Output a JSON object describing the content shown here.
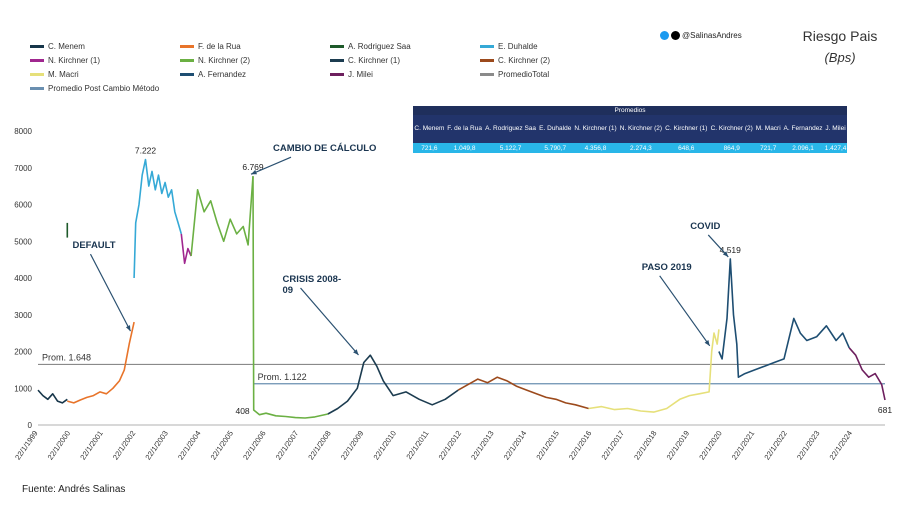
{
  "title": "Riesgo Pais",
  "subtitle": "(Bps)",
  "social": {
    "handle": "@SalinasAndres",
    "icons": [
      "twitter-icon",
      "x-icon"
    ]
  },
  "source": "Fuente: Andrés Salinas",
  "legend": [
    {
      "label": "C. Menem",
      "color": "#17364a"
    },
    {
      "label": "F. de la Rua",
      "color": "#e8742a"
    },
    {
      "label": "A. Rodriguez Saa",
      "color": "#1e5a2a"
    },
    {
      "label": "E. Duhalde",
      "color": "#35a9d6"
    },
    {
      "label": "N. Kirchner (1)",
      "color": "#a0278f"
    },
    {
      "label": "N. Kirchner (2)",
      "color": "#6bb043"
    },
    {
      "label": "C. Kirchner (1)",
      "color": "#1c3c50"
    },
    {
      "label": "C. Kirchner (2)",
      "color": "#9c4a1c"
    },
    {
      "label": "M. Macri",
      "color": "#e6e07a"
    },
    {
      "label": "A. Fernandez",
      "color": "#1e4e72"
    },
    {
      "label": "J. Milei",
      "color": "#6d1f5e"
    },
    {
      "label": "PromedioTotal",
      "color": "#8a8a8a"
    },
    {
      "label": "Promedio Post Cambio Método",
      "color": "#6a8fb0"
    }
  ],
  "averages_table": {
    "caption": "Promedios",
    "headers": [
      "C. Menem",
      "F. de la Rua",
      "A. Rodriguez Saa",
      "E. Duhalde",
      "N. Kirchner (1)",
      "N. Kirchner (2)",
      "C. Kirchner (1)",
      "C. Kirchner (2)",
      "M. Macri",
      "A. Fernandez",
      "J. Milei"
    ],
    "values": [
      "721,6",
      "1.049,8",
      "5.122,7",
      "5.790,7",
      "4.356,8",
      "2.274,3",
      "648,6",
      "864,9",
      "721,7",
      "2.096,1",
      "1.427,4"
    ]
  },
  "chart_data": {
    "type": "line",
    "title": "Riesgo Pais",
    "ylabel": "Bps",
    "xlabel": "",
    "ylim": [
      0,
      8000
    ],
    "yticks": [
      "0",
      "1000",
      "2000",
      "3000",
      "4000",
      "5000",
      "6000",
      "7000",
      "8000"
    ],
    "xlim": [
      1999.0,
      2025.0
    ],
    "xticks": [
      "22/1/1999",
      "22/1/2000",
      "22/1/2001",
      "22/1/2002",
      "22/1/2003",
      "22/1/2004",
      "22/1/2005",
      "22/1/2006",
      "22/1/2007",
      "22/1/2008",
      "22/1/2009",
      "22/1/2010",
      "22/1/2011",
      "22/1/2012",
      "22/1/2013",
      "22/1/2014",
      "22/1/2015",
      "22/1/2016",
      "22/1/2017",
      "22/1/2018",
      "22/1/2019",
      "22/1/2020",
      "22/1/2021",
      "22/1/2022",
      "22/1/2023",
      "22/1/2024"
    ],
    "series": [
      {
        "name": "C. Menem",
        "color": "#17364a",
        "x": [
          1999.0,
          1999.15,
          1999.3,
          1999.45,
          1999.6,
          1999.75,
          1999.9
        ],
        "y": [
          950,
          800,
          700,
          850,
          650,
          600,
          700
        ]
      },
      {
        "name": "F. de la Rua",
        "color": "#e8742a",
        "x": [
          1999.9,
          2000.1,
          2000.3,
          2000.5,
          2000.7,
          2000.9,
          2001.1,
          2001.3,
          2001.5,
          2001.65,
          2001.8,
          2001.95
        ],
        "y": [
          650,
          600,
          680,
          750,
          800,
          900,
          850,
          1000,
          1200,
          1500,
          2200,
          2800
        ]
      },
      {
        "name": "A. Rodriguez Saa",
        "color": "#1e5a2a",
        "x": [
          1999.9,
          1999.9
        ],
        "y": [
          5100,
          5500
        ]
      },
      {
        "name": "E. Duhalde",
        "color": "#35a9d6",
        "x": [
          2001.95,
          2002.0,
          2002.1,
          2002.2,
          2002.3,
          2002.4,
          2002.5,
          2002.6,
          2002.7,
          2002.8,
          2002.9,
          2003.0,
          2003.1,
          2003.2,
          2003.3,
          2003.4
        ],
        "y": [
          4000,
          5500,
          6000,
          6800,
          7222,
          6500,
          6900,
          6400,
          6800,
          6300,
          6600,
          6200,
          6400,
          5800,
          5500,
          5200
        ]
      },
      {
        "name": "N. Kirchner (1)",
        "color": "#a0278f",
        "x": [
          2003.4,
          2003.5,
          2003.6,
          2003.7
        ],
        "y": [
          5200,
          4400,
          4800,
          4600
        ]
      },
      {
        "name": "N. Kirchner (2)",
        "color": "#6bb043",
        "x": [
          2003.7,
          2003.9,
          2004.1,
          2004.3,
          2004.5,
          2004.7,
          2004.9,
          2005.1,
          2005.3,
          2005.45,
          2005.6
        ],
        "y": [
          4600,
          6400,
          5800,
          6100,
          5500,
          5000,
          5600,
          5200,
          5400,
          4900,
          6769
        ]
      },
      {
        "name": "N. Kirchner (2) post",
        "color": "#6bb043",
        "x": [
          2005.6,
          2005.62,
          2005.8,
          2006.0,
          2006.3,
          2006.6,
          2006.9,
          2007.2,
          2007.5,
          2007.9
        ],
        "y": [
          6769,
          408,
          280,
          320,
          250,
          230,
          200,
          190,
          220,
          300
        ]
      },
      {
        "name": "C. Kirchner (1)",
        "color": "#1c3c50",
        "x": [
          2007.9,
          2008.2,
          2008.5,
          2008.8,
          2009.0,
          2009.2,
          2009.4,
          2009.6,
          2009.9,
          2010.3,
          2010.7,
          2011.1,
          2011.5,
          2011.9
        ],
        "y": [
          300,
          450,
          650,
          1000,
          1700,
          1900,
          1600,
          1200,
          800,
          900,
          700,
          550,
          700,
          950
        ]
      },
      {
        "name": "C. Kirchner (2)",
        "color": "#9c4a1c",
        "x": [
          2011.9,
          2012.2,
          2012.5,
          2012.8,
          2013.1,
          2013.4,
          2013.7,
          2014.0,
          2014.3,
          2014.6,
          2014.9,
          2015.2,
          2015.5,
          2015.9
        ],
        "y": [
          950,
          1100,
          1250,
          1150,
          1300,
          1200,
          1050,
          950,
          850,
          750,
          700,
          600,
          550,
          450
        ]
      },
      {
        "name": "M. Macri",
        "color": "#e6e07a",
        "x": [
          2015.9,
          2016.3,
          2016.7,
          2017.1,
          2017.5,
          2017.9,
          2018.3,
          2018.7,
          2019.0,
          2019.3,
          2019.6,
          2019.68,
          2019.75,
          2019.85,
          2019.9
        ],
        "y": [
          450,
          500,
          420,
          450,
          380,
          350,
          450,
          700,
          800,
          850,
          900,
          2000,
          2500,
          2200,
          2600
        ]
      },
      {
        "name": "A. Fernandez",
        "color": "#1e4e72",
        "x": [
          2019.9,
          2020.0,
          2020.15,
          2020.25,
          2020.35,
          2020.45,
          2020.5,
          2020.7,
          2021.0,
          2021.3,
          2021.6,
          2021.9,
          2022.2,
          2022.4,
          2022.6,
          2022.9,
          2023.2,
          2023.5,
          2023.7,
          2023.9
        ],
        "y": [
          2000,
          1800,
          2900,
          4519,
          3000,
          2200,
          1300,
          1400,
          1500,
          1600,
          1700,
          1800,
          2900,
          2500,
          2300,
          2400,
          2700,
          2300,
          2500,
          2100
        ]
      },
      {
        "name": "J. Milei",
        "color": "#6d1f5e",
        "x": [
          2023.9,
          2024.1,
          2024.3,
          2024.5,
          2024.7,
          2024.9,
          2025.0
        ],
        "y": [
          2100,
          1900,
          1500,
          1300,
          1400,
          1100,
          681
        ]
      }
    ],
    "reference_lines": [
      {
        "name": "PromedioTotal",
        "label": "Prom. 1.648",
        "value": 1648,
        "color": "#8a8a8a",
        "from": 1999.0,
        "to": 2025.0
      },
      {
        "name": "Promedio Post Cambio Método",
        "label": "Prom. 1.122",
        "value": 1122,
        "color": "#6a8fb0",
        "from": 2005.62,
        "to": 2025.0
      }
    ],
    "point_labels": [
      {
        "text": "7.222",
        "x": 2002.3,
        "y": 7222
      },
      {
        "text": "6.769",
        "x": 2005.6,
        "y": 6769
      },
      {
        "text": "408",
        "x": 2005.62,
        "y": 408
      },
      {
        "text": "4.519",
        "x": 2020.25,
        "y": 4519
      },
      {
        "text": "681",
        "x": 2025.0,
        "y": 681
      }
    ],
    "annotations": [
      {
        "text": "DEFAULT",
        "x": 2001.9,
        "y": 2500
      },
      {
        "text": "CAMBIO DE CÁLCULO",
        "x": 2005.6,
        "y": 6769
      },
      {
        "text": "CRISIS 2008-\n09",
        "x": 2008.9,
        "y": 1850
      },
      {
        "text": "PASO 2019",
        "x": 2019.68,
        "y": 2100
      },
      {
        "text": "COVID",
        "x": 2020.25,
        "y": 4519
      }
    ]
  }
}
